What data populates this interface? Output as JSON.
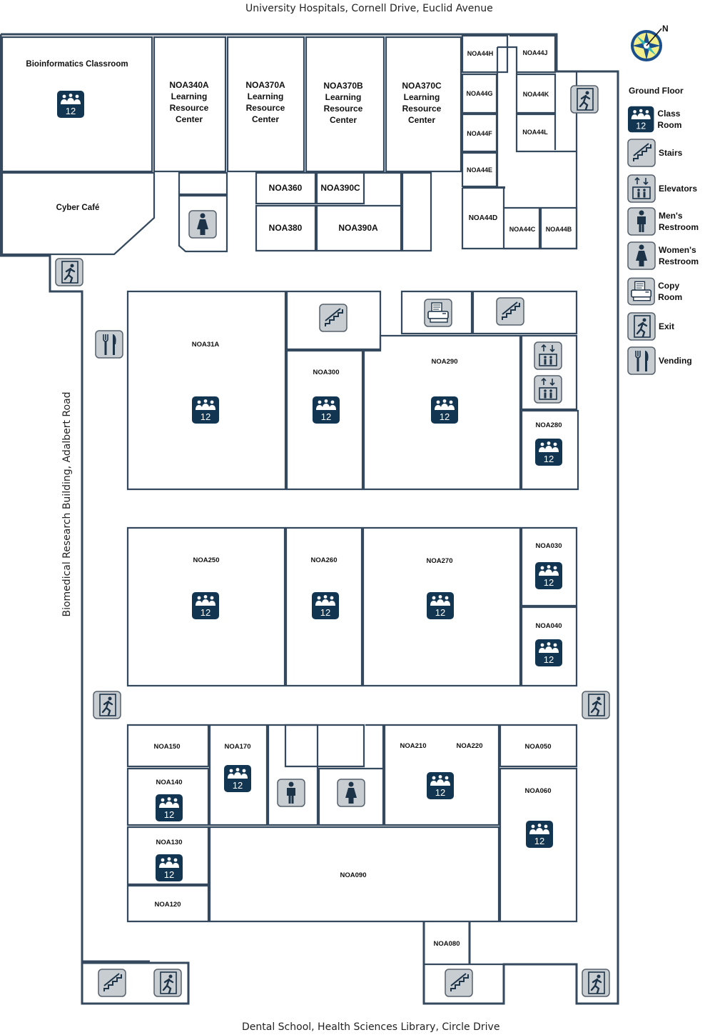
{
  "streets": {
    "top": "University Hospitals, Cornell Drive, Euclid Avenue",
    "bottom": "Dental School, Health Sciences Library, Circle Drive",
    "left": "Biomedical Research Building, Adalbert Road"
  },
  "floor_label": "Ground Floor",
  "classroom_capacity": "12",
  "colors": {
    "wall": "#34495e",
    "wall_fill": "#e9eef3",
    "icon_bg": "#c8cdd2",
    "class_bg": "#123552",
    "icon_dark": "#1d3348"
  },
  "legend": [
    {
      "icon": "class-room-icon",
      "lines": [
        "Class Room"
      ]
    },
    {
      "icon": "stairs-icon",
      "lines": [
        "Stairs"
      ]
    },
    {
      "icon": "elevators-icon",
      "lines": [
        "Elevators"
      ]
    },
    {
      "icon": "mens-restroom-icon",
      "lines": [
        "Men's",
        "Restroom"
      ]
    },
    {
      "icon": "womens-restroom-icon",
      "lines": [
        "Women's",
        "Restroom"
      ]
    },
    {
      "icon": "copy-room-icon",
      "lines": [
        "Copy Room"
      ]
    },
    {
      "icon": "exit-icon",
      "lines": [
        "Exit"
      ]
    },
    {
      "icon": "vending-icon",
      "lines": [
        "Vending"
      ]
    }
  ],
  "rooms": {
    "bioinformatics": "Bioinformatics Classroom",
    "cyber_cafe": "Cyber Café",
    "noa340a": [
      "NOA340A",
      "Learning",
      "Resource",
      "Center"
    ],
    "noa370a": [
      "NOA370A",
      "Learning",
      "Resource",
      "Center"
    ],
    "noa370b": [
      "NOA370B",
      "Learning",
      "Resource",
      "Center"
    ],
    "noa370c": [
      "NOA370C",
      "Learning",
      "Resource",
      "Center"
    ],
    "noa360": "NOA360",
    "noa390c": "NOA390C",
    "noa380": "NOA380",
    "noa390a": "NOA390A",
    "noa44h": "NOA44H",
    "noa44j": "NOA44J",
    "noa44g": "NOA44G",
    "noa44k": "NOA44K",
    "noa44f": "NOA44F",
    "noa44l": "NOA44L",
    "noa44e": "NOA44E",
    "noa44d": "NOA44D",
    "noa44c": "NOA44C",
    "noa44b": "NOA44B",
    "noa31a": "NOA31A",
    "noa300": "NOA300",
    "noa290": "NOA290",
    "noa280": "NOA280",
    "noa250": "NOA250",
    "noa260": "NOA260",
    "noa270": "NOA270",
    "noa030": "NOA030",
    "noa040": "NOA040",
    "noa150": "NOA150",
    "noa170": "NOA170",
    "noa140": "NOA140",
    "noa130": "NOA130",
    "noa120": "NOA120",
    "noa210": "NOA210",
    "noa220": "NOA220",
    "noa050": "NOA050",
    "noa060": "NOA060",
    "noa090": "NOA090",
    "noa080": "NOA080"
  }
}
